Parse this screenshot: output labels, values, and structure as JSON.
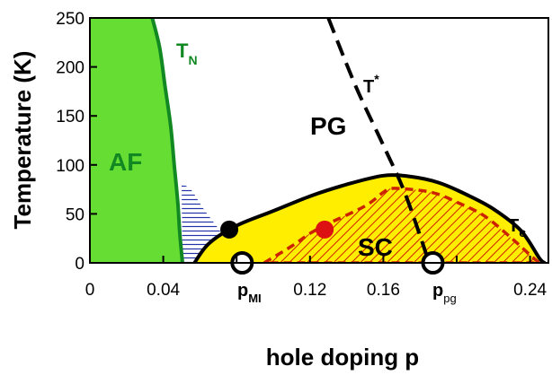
{
  "chart_data": {
    "type": "phase-diagram",
    "xlabel": "hole doping p",
    "ylabel": "Temperature (K)",
    "xlim": [
      0,
      0.25
    ],
    "ylim": [
      0,
      250
    ],
    "x_ticks": [
      0,
      0.04,
      0.08,
      0.12,
      0.16,
      0.2,
      0.24
    ],
    "x_tick_labels": [
      "0",
      "0.04",
      "",
      "0.12",
      "0.16",
      "",
      "0.24"
    ],
    "y_ticks": [
      0,
      50,
      100,
      150,
      200,
      250
    ],
    "y_tick_labels": [
      "0",
      "50",
      "100",
      "150",
      "200",
      "250"
    ],
    "grid": false,
    "colors": {
      "af": "#66dd33",
      "af_line": "#118822",
      "sc": "#ffee00",
      "hatch_red": "#cc2200",
      "hatch_blue": "#2233aa",
      "pg_line": "#000000",
      "tc_line": "#000000",
      "red_dot": "#dd1111"
    },
    "labels": {
      "af": "AF",
      "tn_main": "T",
      "tn_sub": "N",
      "pg": "PG",
      "tstar_main": "T",
      "tstar_sup": "*",
      "sc": "SC",
      "tc_main": "T",
      "tc_sub": "c",
      "pmi_main": "p",
      "pmi_sub": "MI",
      "ppg_main": "p",
      "ppg_sub": "pg"
    },
    "T_N": [
      [
        0.034,
        250
      ],
      [
        0.038,
        220
      ],
      [
        0.041,
        180
      ],
      [
        0.044,
        140
      ],
      [
        0.046,
        100
      ],
      [
        0.048,
        60
      ],
      [
        0.049,
        30
      ],
      [
        0.0505,
        0
      ]
    ],
    "T_c": [
      [
        0.057,
        0
      ],
      [
        0.065,
        20
      ],
      [
        0.08,
        38
      ],
      [
        0.1,
        53
      ],
      [
        0.12,
        68
      ],
      [
        0.14,
        80
      ],
      [
        0.16,
        89
      ],
      [
        0.175,
        88
      ],
      [
        0.19,
        82
      ],
      [
        0.205,
        70
      ],
      [
        0.22,
        55
      ],
      [
        0.235,
        33
      ],
      [
        0.245,
        5
      ],
      [
        0.248,
        0
      ]
    ],
    "T_c_inner": [
      [
        0.095,
        0
      ],
      [
        0.11,
        17
      ],
      [
        0.12,
        30
      ],
      [
        0.13,
        40
      ],
      [
        0.15,
        58
      ],
      [
        0.16,
        72
      ],
      [
        0.165,
        76
      ],
      [
        0.18,
        74
      ],
      [
        0.19,
        70
      ],
      [
        0.2,
        62
      ],
      [
        0.215,
        48
      ],
      [
        0.23,
        25
      ],
      [
        0.24,
        8
      ],
      [
        0.245,
        0
      ]
    ],
    "T_star": [
      [
        0.13,
        250
      ],
      [
        0.145,
        180
      ],
      [
        0.16,
        120
      ],
      [
        0.172,
        70
      ],
      [
        0.185,
        0
      ]
    ],
    "blue_region": [
      [
        0.05,
        80
      ],
      [
        0.055,
        75
      ],
      [
        0.062,
        55
      ],
      [
        0.07,
        35
      ],
      [
        0.075,
        20
      ],
      [
        0.077,
        5
      ],
      [
        0.078,
        0
      ],
      [
        0.0505,
        0
      ]
    ],
    "points": [
      {
        "p": 0.076,
        "T": 34,
        "style": "filled-black"
      },
      {
        "p": 0.128,
        "T": 34,
        "style": "filled-red"
      },
      {
        "p": 0.083,
        "T": 0,
        "style": "open"
      },
      {
        "p": 0.187,
        "T": 0,
        "style": "open"
      }
    ]
  }
}
